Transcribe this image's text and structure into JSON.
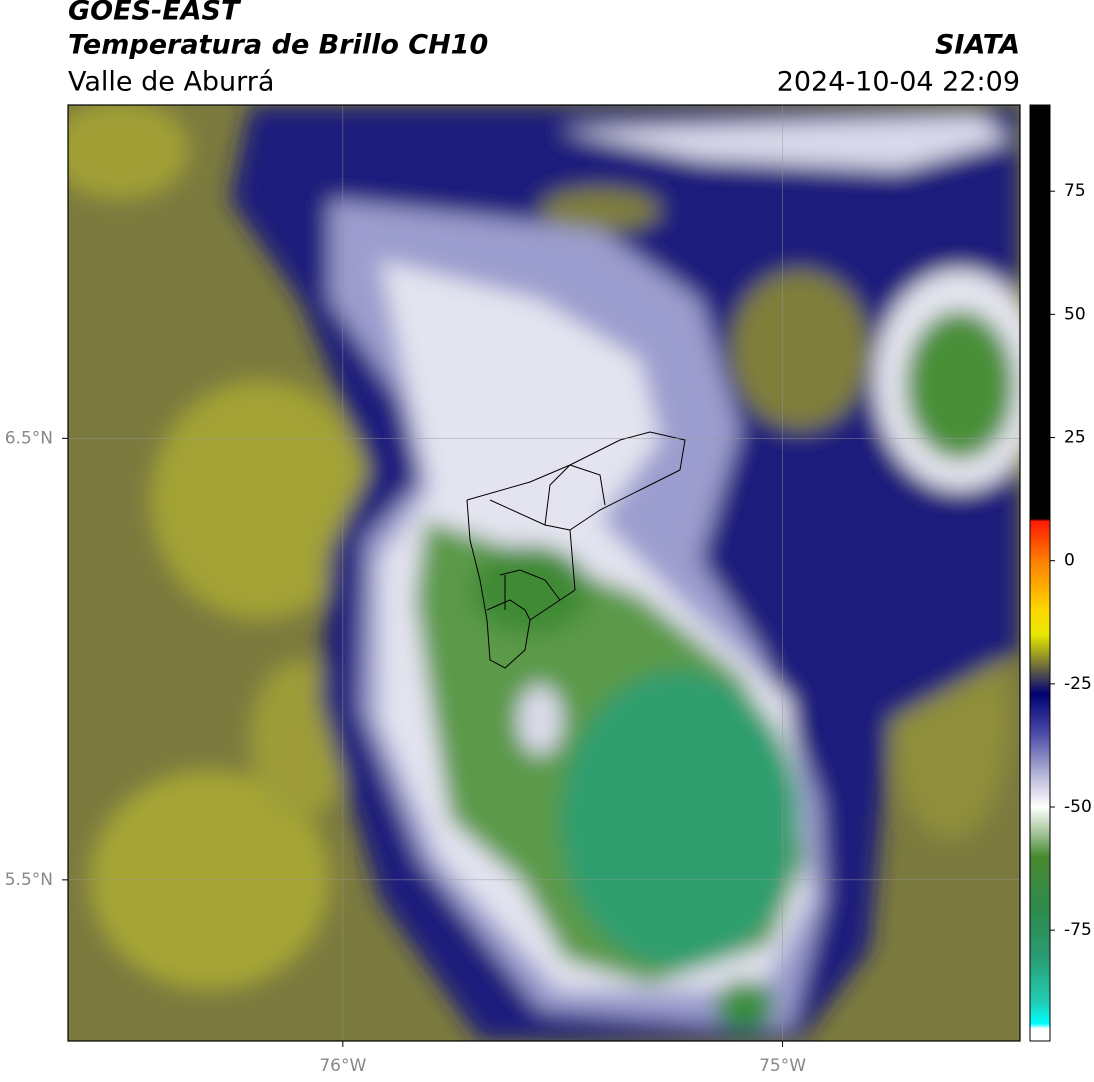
{
  "header": {
    "title": "GOES-EAST",
    "subtitle": "Temperatura de Brillo CH10",
    "source": "SIATA",
    "region": "Valle de Aburrá",
    "datetime": "2024-10-04 22:09"
  },
  "map": {
    "xlim": [
      -76.625,
      -74.46
    ],
    "ylim": [
      5.135,
      7.255
    ],
    "xticks": [
      {
        "value": -76,
        "label": "76°W"
      },
      {
        "value": -75,
        "label": "75°W"
      }
    ],
    "yticks": [
      {
        "value": 5.5,
        "label": "5.5°N"
      },
      {
        "value": 6.5,
        "label": "6.5°N"
      }
    ],
    "grid": true
  },
  "colorbar": {
    "clim": [
      -97.5,
      92.5
    ],
    "ticks": [
      -75,
      -50,
      -25,
      0,
      25,
      50,
      75
    ],
    "stops": [
      {
        "value": 92.5,
        "color": "#000000"
      },
      {
        "value": 8.5,
        "color": "#000000"
      },
      {
        "value": 8,
        "color": "#ff1a00"
      },
      {
        "value": 0,
        "color": "#ff7f00"
      },
      {
        "value": -10,
        "color": "#ffd700"
      },
      {
        "value": -15,
        "color": "#e8e800"
      },
      {
        "value": -20,
        "color": "#8a8a2a"
      },
      {
        "value": -24,
        "color": "#3a3a5a"
      },
      {
        "value": -27,
        "color": "#000070"
      },
      {
        "value": -35,
        "color": "#4a4aa8"
      },
      {
        "value": -45,
        "color": "#c8c8e0"
      },
      {
        "value": -50,
        "color": "#ffffff"
      },
      {
        "value": -55,
        "color": "#a8c8a0"
      },
      {
        "value": -60,
        "color": "#4a8a30"
      },
      {
        "value": -70,
        "color": "#2f8a4a"
      },
      {
        "value": -80,
        "color": "#2a9a70"
      },
      {
        "value": -90,
        "color": "#20d0b8"
      },
      {
        "value": -94,
        "color": "#00ffff"
      },
      {
        "value": -95,
        "color": "#ffffff"
      },
      {
        "value": -97.5,
        "color": "#ffffff"
      }
    ]
  }
}
